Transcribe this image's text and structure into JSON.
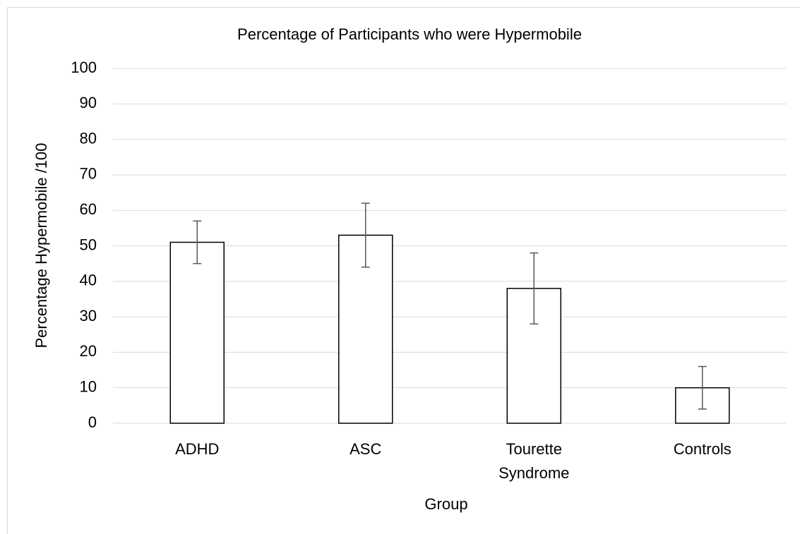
{
  "chart_data": {
    "type": "bar",
    "title": "Percentage of Participants who were Hypermobile",
    "x_label": "Group",
    "y_label": "Percentage Hypermobile /100",
    "categories": [
      "ADHD",
      "ASC",
      "Tourette Syndrome",
      "Controls"
    ],
    "values": [
      51,
      53,
      38,
      10
    ],
    "errors": [
      6,
      9,
      10,
      6
    ],
    "color": "#ffffff",
    "edge_color": "#000000",
    "error_color": "#595959",
    "ylim": [
      0,
      100
    ],
    "yticks": [
      0,
      10,
      20,
      30,
      40,
      50,
      60,
      70,
      80,
      90,
      100
    ],
    "grid": true
  }
}
